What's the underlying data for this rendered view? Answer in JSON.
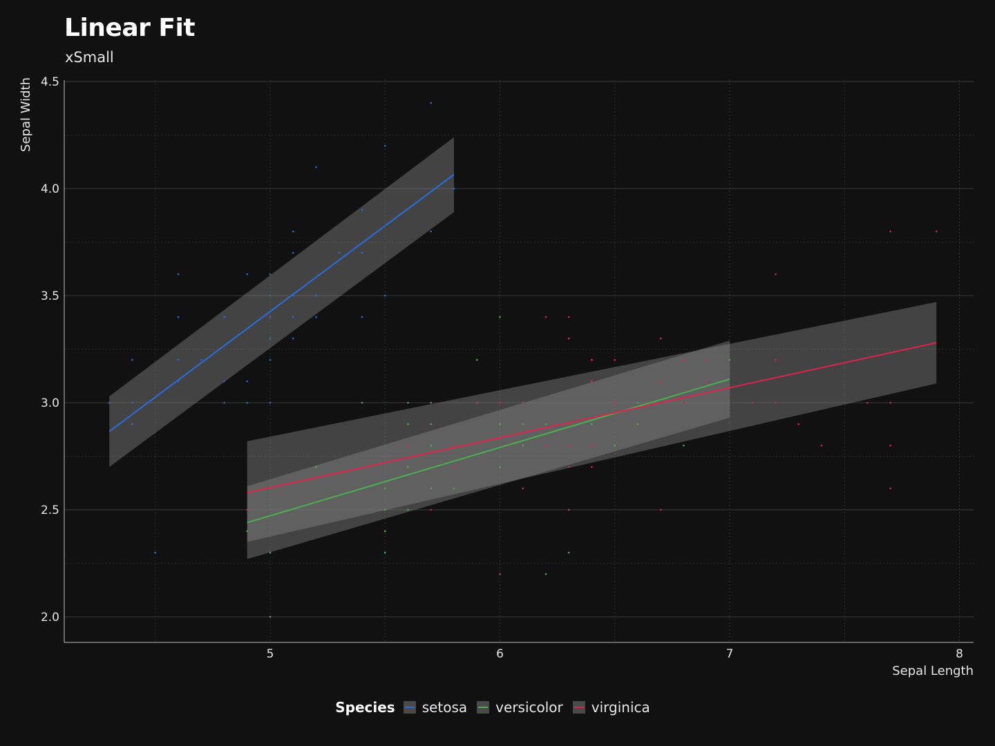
{
  "chart_data": {
    "type": "scatter",
    "title": "Linear Fit",
    "subtitle": "xSmall",
    "xlabel": "Sepal Length",
    "ylabel": "Sepal Width",
    "xlim": [
      4.1,
      8.08
    ],
    "ylim": [
      1.88,
      4.5
    ],
    "x_ticks": [
      5,
      6,
      7,
      8
    ],
    "y_ticks": [
      2.0,
      2.5,
      3.0,
      3.5,
      4.0,
      4.5
    ],
    "y_tick_labels": [
      "2.0",
      "2.5",
      "3.0",
      "3.5",
      "4.0",
      "4.5"
    ],
    "grid": true,
    "legend_title": "Species",
    "legend_position": "bottom",
    "series": [
      {
        "name": "setosa",
        "color": "#2a6de0",
        "fit": {
          "x": [
            4.3,
            5.8
          ],
          "y": [
            2.866,
            4.066
          ],
          "ci_low": [
            2.7,
            3.89
          ],
          "ci_high": [
            3.03,
            4.24
          ]
        },
        "points": [
          [
            4.3,
            3.0
          ],
          [
            4.4,
            2.9
          ],
          [
            4.4,
            3.0
          ],
          [
            4.4,
            3.2
          ],
          [
            4.5,
            2.3
          ],
          [
            4.6,
            3.1
          ],
          [
            4.6,
            3.2
          ],
          [
            4.6,
            3.4
          ],
          [
            4.6,
            3.6
          ],
          [
            4.7,
            3.2
          ],
          [
            4.8,
            3.0
          ],
          [
            4.8,
            3.1
          ],
          [
            4.8,
            3.4
          ],
          [
            4.9,
            3.0
          ],
          [
            4.9,
            3.1
          ],
          [
            4.9,
            3.6
          ],
          [
            5.0,
            3.0
          ],
          [
            5.0,
            3.2
          ],
          [
            5.0,
            3.3
          ],
          [
            5.0,
            3.4
          ],
          [
            5.0,
            3.5
          ],
          [
            5.0,
            3.6
          ],
          [
            5.1,
            3.3
          ],
          [
            5.1,
            3.4
          ],
          [
            5.1,
            3.5
          ],
          [
            5.1,
            3.7
          ],
          [
            5.1,
            3.8
          ],
          [
            5.2,
            3.4
          ],
          [
            5.2,
            3.5
          ],
          [
            5.2,
            4.1
          ],
          [
            5.3,
            3.7
          ],
          [
            5.4,
            3.4
          ],
          [
            5.4,
            3.7
          ],
          [
            5.4,
            3.9
          ],
          [
            5.5,
            3.5
          ],
          [
            5.5,
            4.2
          ],
          [
            5.7,
            3.8
          ],
          [
            5.7,
            4.4
          ],
          [
            5.8,
            4.0
          ]
        ]
      },
      {
        "name": "versicolor",
        "color": "#4caf50",
        "fit": {
          "x": [
            4.9,
            7.0
          ],
          "y": [
            2.44,
            3.11
          ],
          "ci_low": [
            2.27,
            2.93
          ],
          "ci_high": [
            2.61,
            3.29
          ]
        },
        "points": [
          [
            4.9,
            2.4
          ],
          [
            5.0,
            2.0
          ],
          [
            5.0,
            2.3
          ],
          [
            5.2,
            2.7
          ],
          [
            5.4,
            3.0
          ],
          [
            5.5,
            2.3
          ],
          [
            5.5,
            2.4
          ],
          [
            5.5,
            2.5
          ],
          [
            5.5,
            2.6
          ],
          [
            5.6,
            2.5
          ],
          [
            5.6,
            2.7
          ],
          [
            5.6,
            2.9
          ],
          [
            5.6,
            3.0
          ],
          [
            5.7,
            2.6
          ],
          [
            5.7,
            2.8
          ],
          [
            5.7,
            2.9
          ],
          [
            5.7,
            3.0
          ],
          [
            5.8,
            2.6
          ],
          [
            5.8,
            2.7
          ],
          [
            5.9,
            3.0
          ],
          [
            5.9,
            3.2
          ],
          [
            6.0,
            2.2
          ],
          [
            6.0,
            2.7
          ],
          [
            6.0,
            2.9
          ],
          [
            6.0,
            3.4
          ],
          [
            6.1,
            2.8
          ],
          [
            6.1,
            2.9
          ],
          [
            6.1,
            3.0
          ],
          [
            6.2,
            2.2
          ],
          [
            6.2,
            2.9
          ],
          [
            6.3,
            2.3
          ],
          [
            6.3,
            2.5
          ],
          [
            6.3,
            3.3
          ],
          [
            6.4,
            2.9
          ],
          [
            6.4,
            3.2
          ],
          [
            6.5,
            2.8
          ],
          [
            6.6,
            2.9
          ],
          [
            6.6,
            3.0
          ],
          [
            6.7,
            3.0
          ],
          [
            6.7,
            3.1
          ],
          [
            6.8,
            2.8
          ],
          [
            6.9,
            3.1
          ],
          [
            7.0,
            3.2
          ]
        ]
      },
      {
        "name": "virginica",
        "color": "#e0224e",
        "fit": {
          "x": [
            4.9,
            7.9
          ],
          "y": [
            2.58,
            3.28
          ],
          "ci_low": [
            2.35,
            3.09
          ],
          "ci_high": [
            2.82,
            3.47
          ]
        },
        "points": [
          [
            4.9,
            2.5
          ],
          [
            5.6,
            2.8
          ],
          [
            5.7,
            2.5
          ],
          [
            5.8,
            2.7
          ],
          [
            5.8,
            2.8
          ],
          [
            5.9,
            3.0
          ],
          [
            6.0,
            2.2
          ],
          [
            6.0,
            3.0
          ],
          [
            6.1,
            2.6
          ],
          [
            6.1,
            3.0
          ],
          [
            6.2,
            2.8
          ],
          [
            6.2,
            3.4
          ],
          [
            6.3,
            2.5
          ],
          [
            6.3,
            2.7
          ],
          [
            6.3,
            2.8
          ],
          [
            6.3,
            2.9
          ],
          [
            6.3,
            3.3
          ],
          [
            6.3,
            3.4
          ],
          [
            6.4,
            2.7
          ],
          [
            6.4,
            2.8
          ],
          [
            6.4,
            3.1
          ],
          [
            6.4,
            3.2
          ],
          [
            6.5,
            3.0
          ],
          [
            6.5,
            3.2
          ],
          [
            6.7,
            2.5
          ],
          [
            6.7,
            3.0
          ],
          [
            6.7,
            3.1
          ],
          [
            6.7,
            3.3
          ],
          [
            6.8,
            3.0
          ],
          [
            6.8,
            3.2
          ],
          [
            6.9,
            3.1
          ],
          [
            6.9,
            3.2
          ],
          [
            7.1,
            3.0
          ],
          [
            7.2,
            3.0
          ],
          [
            7.2,
            3.2
          ],
          [
            7.2,
            3.6
          ],
          [
            7.3,
            2.9
          ],
          [
            7.4,
            2.8
          ],
          [
            7.6,
            3.0
          ],
          [
            7.7,
            2.6
          ],
          [
            7.7,
            2.8
          ],
          [
            7.7,
            3.0
          ],
          [
            7.7,
            3.8
          ],
          [
            7.9,
            3.8
          ]
        ]
      }
    ]
  }
}
